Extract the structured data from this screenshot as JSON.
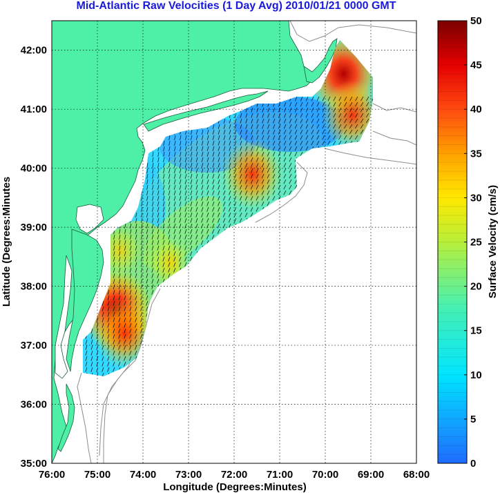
{
  "title": "Mid-Atlantic Raw Velocities (1 Day Avg) 2010/01/21 0000 GMT",
  "xlabel": "Longitude (Degrees:Minutes)",
  "ylabel": "Latitude (Degrees:Minutes",
  "colorbar_label": "Surface Velocity (cm/s)",
  "colors": {
    "land": "#4ef0a8",
    "plot_bg": "#ffffff",
    "title": "#1a1adb"
  },
  "chart_data": {
    "type": "heatmap",
    "x_ticks": [
      "76:00",
      "75:00",
      "74:00",
      "73:00",
      "72:00",
      "71:00",
      "70:00",
      "69:00",
      "68:00"
    ],
    "y_ticks": [
      "42:00",
      "41:00",
      "40:00",
      "39:00",
      "38:00",
      "37:00",
      "36:00",
      "35:00"
    ],
    "xlim": [
      -76,
      -68
    ],
    "ylim": [
      35,
      42.5
    ],
    "grid": true,
    "colorbar": {
      "min": 0,
      "max": 50,
      "ticks": [
        "50",
        "45",
        "40",
        "35",
        "30",
        "25",
        "20",
        "15",
        "10",
        "5",
        "0"
      ]
    },
    "velocity_hotspots": [
      {
        "lon": -74.6,
        "lat": 37.6,
        "speed": 45
      },
      {
        "lon": -74.4,
        "lat": 37.2,
        "speed": 35
      },
      {
        "lon": -71.6,
        "lat": 39.9,
        "speed": 38
      },
      {
        "lon": -69.6,
        "lat": 41.6,
        "speed": 48
      },
      {
        "lon": -69.4,
        "lat": 40.9,
        "speed": 35
      },
      {
        "lon": -73.4,
        "lat": 38.4,
        "speed": 28
      },
      {
        "lon": -74.5,
        "lat": 38.6,
        "speed": 22
      }
    ]
  }
}
